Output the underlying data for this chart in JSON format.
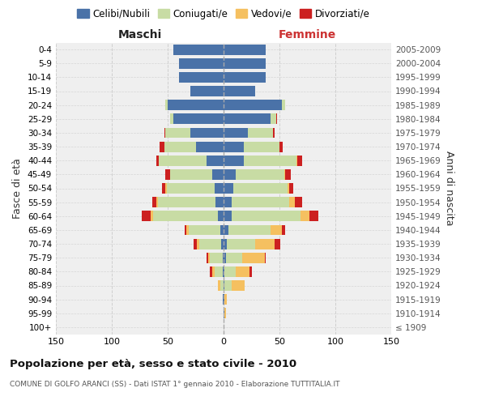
{
  "age_groups": [
    "100+",
    "95-99",
    "90-94",
    "85-89",
    "80-84",
    "75-79",
    "70-74",
    "65-69",
    "60-64",
    "55-59",
    "50-54",
    "45-49",
    "40-44",
    "35-39",
    "30-34",
    "25-29",
    "20-24",
    "15-19",
    "10-14",
    "5-9",
    "0-4"
  ],
  "birth_years": [
    "≤ 1909",
    "1910-1914",
    "1915-1919",
    "1920-1924",
    "1925-1929",
    "1930-1934",
    "1935-1939",
    "1940-1944",
    "1945-1949",
    "1950-1954",
    "1955-1959",
    "1960-1964",
    "1965-1969",
    "1970-1974",
    "1975-1979",
    "1980-1984",
    "1985-1989",
    "1990-1994",
    "1995-1999",
    "2000-2004",
    "2005-2009"
  ],
  "males_celibi": [
    0,
    0,
    1,
    0,
    1,
    1,
    2,
    3,
    5,
    7,
    8,
    10,
    15,
    25,
    30,
    45,
    50,
    30,
    40,
    40,
    45
  ],
  "males_coniugati": [
    0,
    0,
    0,
    3,
    7,
    11,
    20,
    28,
    58,
    52,
    43,
    38,
    43,
    28,
    22,
    3,
    2,
    0,
    0,
    0,
    0
  ],
  "males_vedovi": [
    0,
    0,
    0,
    2,
    2,
    2,
    2,
    2,
    2,
    1,
    1,
    0,
    0,
    0,
    0,
    0,
    0,
    0,
    0,
    0,
    0
  ],
  "males_divorziati": [
    0,
    0,
    0,
    0,
    2,
    1,
    3,
    2,
    8,
    4,
    3,
    4,
    2,
    4,
    1,
    0,
    0,
    0,
    0,
    0,
    0
  ],
  "females_nubili": [
    0,
    1,
    1,
    1,
    1,
    2,
    3,
    4,
    7,
    7,
    9,
    11,
    18,
    18,
    22,
    42,
    52,
    28,
    38,
    38,
    38
  ],
  "females_coniugate": [
    0,
    0,
    0,
    6,
    10,
    15,
    25,
    38,
    62,
    52,
    48,
    43,
    47,
    32,
    22,
    5,
    3,
    0,
    0,
    0,
    0
  ],
  "females_vedove": [
    0,
    1,
    2,
    12,
    12,
    20,
    18,
    10,
    8,
    5,
    2,
    1,
    1,
    0,
    0,
    0,
    0,
    0,
    0,
    0,
    0
  ],
  "females_divorziate": [
    0,
    0,
    0,
    0,
    2,
    1,
    5,
    3,
    8,
    6,
    3,
    5,
    4,
    3,
    2,
    1,
    0,
    0,
    0,
    0,
    0
  ],
  "color_celibi": "#4a72a8",
  "color_coniugati": "#c8dca4",
  "color_vedovi": "#f5c060",
  "color_divorziati": "#cc2020",
  "bg_color": "#efefef",
  "grid_color": "#cccccc",
  "xlim": 150,
  "title": "Popolazione per età, sesso e stato civile - 2010",
  "subtitle": "COMUNE DI GOLFO ARANCI (SS) - Dati ISTAT 1° gennaio 2010 - Elaborazione TUTTITALIA.IT",
  "ylabel_left": "Fasce di età",
  "ylabel_right": "Anni di nascita",
  "label_maschi": "Maschi",
  "label_femmine": "Femmine",
  "legend_labels": [
    "Celibi/Nubili",
    "Coniugati/e",
    "Vedovi/e",
    "Divorziati/e"
  ]
}
